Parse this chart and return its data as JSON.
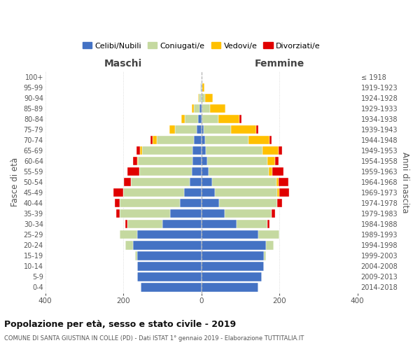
{
  "age_groups": [
    "0-4",
    "5-9",
    "10-14",
    "15-19",
    "20-24",
    "25-29",
    "30-34",
    "35-39",
    "40-44",
    "45-49",
    "50-54",
    "55-59",
    "60-64",
    "65-69",
    "70-74",
    "75-79",
    "80-84",
    "85-89",
    "90-94",
    "95-99",
    "100+"
  ],
  "birth_years": [
    "2014-2018",
    "2009-2013",
    "2004-2008",
    "1999-2003",
    "1994-1998",
    "1989-1993",
    "1984-1988",
    "1979-1983",
    "1974-1978",
    "1969-1973",
    "1964-1968",
    "1959-1963",
    "1954-1958",
    "1949-1953",
    "1944-1948",
    "1939-1943",
    "1934-1938",
    "1929-1933",
    "1924-1928",
    "1919-1923",
    "≤ 1918"
  ],
  "maschi": {
    "celibi": [
      155,
      165,
      165,
      165,
      175,
      165,
      100,
      80,
      55,
      45,
      30,
      25,
      22,
      22,
      20,
      12,
      8,
      5,
      2,
      1,
      0
    ],
    "coniugati": [
      0,
      0,
      0,
      5,
      20,
      45,
      90,
      130,
      155,
      155,
      150,
      135,
      140,
      130,
      95,
      55,
      35,
      15,
      5,
      2,
      0
    ],
    "vedovi": [
      0,
      0,
      0,
      0,
      0,
      0,
      0,
      0,
      0,
      0,
      0,
      0,
      2,
      5,
      10,
      15,
      8,
      5,
      2,
      0,
      0
    ],
    "divorziati": [
      0,
      0,
      0,
      0,
      0,
      0,
      5,
      8,
      12,
      25,
      18,
      30,
      12,
      10,
      5,
      0,
      0,
      0,
      0,
      0,
      0
    ]
  },
  "femmine": {
    "nubili": [
      145,
      155,
      160,
      160,
      165,
      145,
      90,
      60,
      45,
      35,
      28,
      18,
      15,
      12,
      10,
      5,
      3,
      2,
      1,
      0,
      0
    ],
    "coniugate": [
      0,
      0,
      0,
      5,
      20,
      55,
      80,
      120,
      150,
      160,
      165,
      155,
      155,
      145,
      110,
      70,
      40,
      20,
      8,
      2,
      0
    ],
    "vedove": [
      0,
      0,
      0,
      0,
      0,
      0,
      0,
      0,
      0,
      5,
      5,
      8,
      18,
      40,
      55,
      65,
      55,
      40,
      20,
      5,
      0
    ],
    "divorziate": [
      0,
      0,
      0,
      0,
      0,
      0,
      5,
      8,
      12,
      25,
      25,
      30,
      10,
      10,
      5,
      5,
      5,
      0,
      0,
      0,
      0
    ]
  },
  "colors": {
    "celibi": "#4472c4",
    "coniugati": "#c5d9a0",
    "vedovi": "#ffc000",
    "divorziati": "#e00000"
  },
  "title": "Popolazione per età, sesso e stato civile - 2019",
  "subtitle": "COMUNE DI SANTA GIUSTINA IN COLLE (PD) - Dati ISTAT 1° gennaio 2019 - Elaborazione TUTTITALIA.IT",
  "xlabel_left": "Maschi",
  "xlabel_right": "Femmine",
  "ylabel_left": "Fasce di età",
  "ylabel_right": "Anni di nascita",
  "xlim": 400,
  "legend_labels": [
    "Celibi/Nubili",
    "Coniugati/e",
    "Vedovi/e",
    "Divorziati/e"
  ],
  "bg_color": "#ffffff",
  "grid_color": "#cccccc"
}
